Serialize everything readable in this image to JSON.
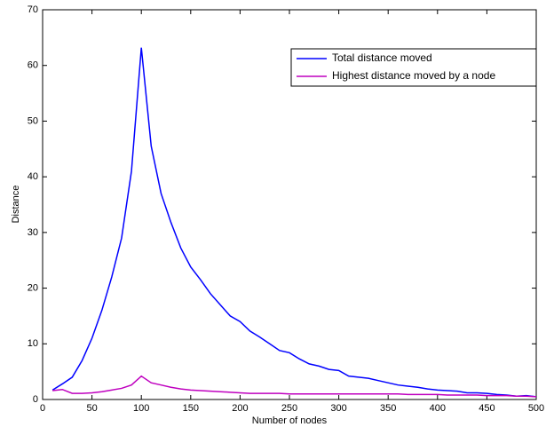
{
  "chart_data": {
    "type": "line",
    "xlabel": "Number of nodes",
    "ylabel": "Distance",
    "x": [
      10,
      20,
      30,
      40,
      50,
      60,
      70,
      80,
      90,
      100,
      110,
      120,
      130,
      140,
      150,
      160,
      170,
      180,
      190,
      200,
      210,
      220,
      230,
      240,
      250,
      260,
      270,
      280,
      290,
      300,
      310,
      320,
      330,
      340,
      350,
      360,
      370,
      380,
      390,
      400,
      410,
      420,
      430,
      440,
      450,
      460,
      470,
      480,
      490,
      500
    ],
    "series": [
      {
        "name": "Total distance moved",
        "color": "#0000ff",
        "values": [
          1.7,
          2.8,
          4.0,
          7.0,
          11.0,
          16.0,
          22.0,
          29.0,
          41.0,
          63.2,
          45.5,
          37.0,
          31.8,
          27.2,
          23.8,
          21.5,
          19.0,
          17.0,
          15.0,
          14.0,
          12.3,
          11.2,
          10.0,
          8.8,
          8.4,
          7.3,
          6.4,
          6.0,
          5.4,
          5.2,
          4.2,
          4.0,
          3.8,
          3.4,
          3.0,
          2.6,
          2.4,
          2.2,
          1.9,
          1.7,
          1.6,
          1.5,
          1.2,
          1.2,
          1.1,
          0.9,
          0.8,
          0.6,
          0.7,
          0.5
        ]
      },
      {
        "name": "Highest distance moved by a node",
        "color": "#bf00bf",
        "values": [
          1.6,
          1.8,
          1.1,
          1.1,
          1.2,
          1.4,
          1.7,
          2.0,
          2.6,
          4.2,
          3.0,
          2.6,
          2.2,
          1.9,
          1.7,
          1.6,
          1.5,
          1.4,
          1.3,
          1.2,
          1.1,
          1.1,
          1.1,
          1.1,
          1.0,
          1.0,
          1.0,
          1.0,
          1.0,
          1.0,
          1.0,
          1.0,
          1.0,
          1.0,
          1.0,
          1.0,
          0.9,
          0.9,
          0.9,
          0.9,
          0.8,
          0.8,
          0.8,
          0.8,
          0.7,
          0.7,
          0.7,
          0.6,
          0.6,
          0.5
        ]
      }
    ],
    "xlim": [
      0,
      500
    ],
    "ylim": [
      0,
      70
    ],
    "xticks": [
      0,
      50,
      100,
      150,
      200,
      250,
      300,
      350,
      400,
      450,
      500
    ],
    "yticks": [
      0,
      10,
      20,
      30,
      40,
      50,
      60,
      70
    ],
    "grid": false,
    "legend": "northeast"
  }
}
